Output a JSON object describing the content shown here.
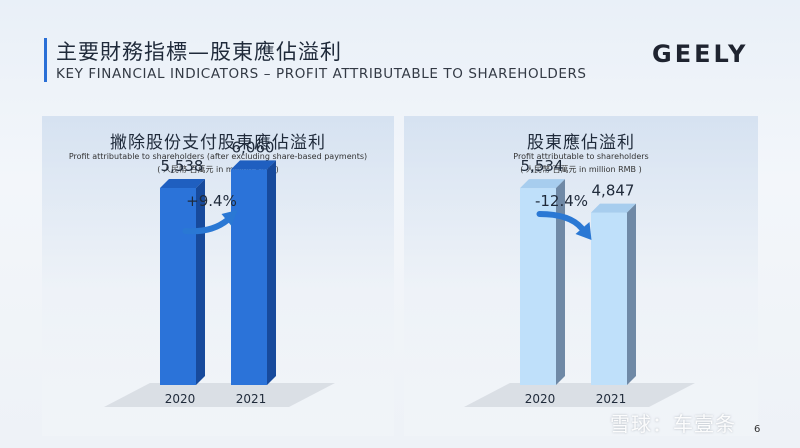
{
  "header": {
    "title_zh": "主要財務指標—股東應佔溢利",
    "title_en": "KEY FINANCIAL INDICATORS  –  PROFIT ATTRIBUTABLE TO SHAREHOLDERS"
  },
  "logo": {
    "text": "GEELY"
  },
  "colors": {
    "left_front": "#2b73d9",
    "left_top": "#1f5fc0",
    "left_side": "#174a9c",
    "right_front": "#bfe0fa",
    "right_top": "#a7cdee",
    "right_side": "#6f89a6",
    "arrow": "#2a78d4"
  },
  "chart_data": [
    {
      "type": "bar",
      "title": "撇除股份支付股東應佔溢利",
      "subtitle": "Profit attributable to shareholders (after excluding share-based payments)",
      "unit": "( 人民幣 百萬元 in million RMB )",
      "categories": [
        "2020",
        "2021"
      ],
      "values": [
        5538,
        6060
      ],
      "value_labels": [
        "5,538",
        "6,060"
      ],
      "change_label": "+9.4%",
      "change_direction": "up",
      "ylim": [
        0,
        7000
      ],
      "style": "left"
    },
    {
      "type": "bar",
      "title": "股東應佔溢利",
      "subtitle": "Profit attributable to shareholders",
      "unit": "( 人民幣 百萬元 in million RMB )",
      "categories": [
        "2020",
        "2021"
      ],
      "values": [
        5534,
        4847
      ],
      "value_labels": [
        "5,534",
        "4,847"
      ],
      "change_label": "-12.4%",
      "change_direction": "down",
      "ylim": [
        0,
        7000
      ],
      "style": "right"
    }
  ],
  "watermark": "雪球：车壹条",
  "page_number": "6"
}
